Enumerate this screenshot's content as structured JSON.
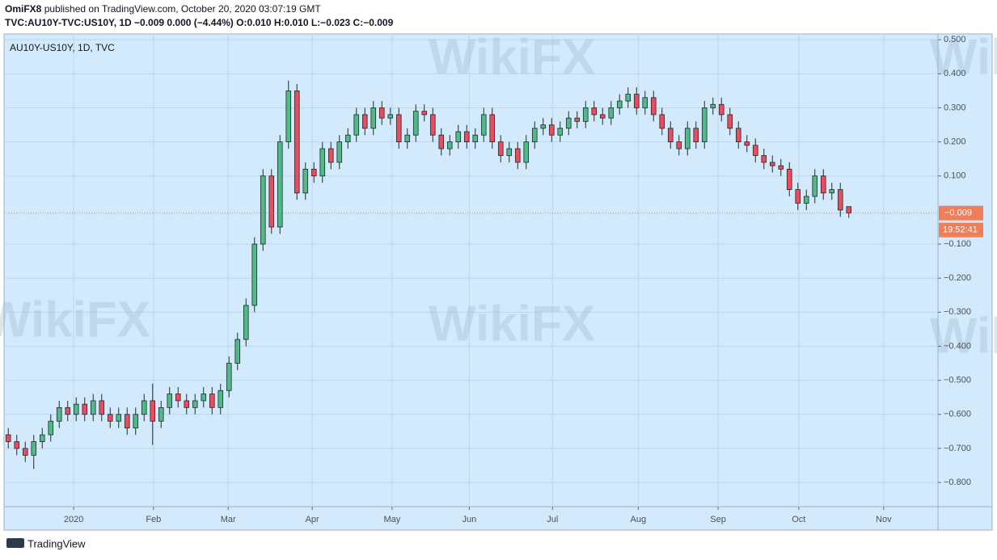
{
  "header": {
    "publisher": "OmiFX8",
    "published": "published on TradingView.com, October 20, 2020 03:07:19 GMT",
    "symbol_line": "TVC:AU10Y-TVC:US10Y, 1D  −0.009 0.000 (−4.44%) O:0.010 H:0.010 L:−0.023 C:−0.009"
  },
  "footer": {
    "brand": "TradingView"
  },
  "watermark": "WikiFX",
  "chart_data": {
    "type": "candlestick",
    "legend": "AU10Y-US10Y, 1D, TVC",
    "up_color": "#53b987",
    "down_color": "#eb4d5c",
    "grid": true,
    "price_badge": "−0.009",
    "countdown": "19:52:41",
    "xlim": [
      -0.5,
      109.5
    ],
    "xticks": [
      {
        "value": 7.7,
        "label": "2020"
      },
      {
        "value": 17.1,
        "label": "Feb"
      },
      {
        "value": 25.9,
        "label": "Mar"
      },
      {
        "value": 35.8,
        "label": "Apr"
      },
      {
        "value": 45.2,
        "label": "May"
      },
      {
        "value": 54.3,
        "label": "Jun"
      },
      {
        "value": 64.1,
        "label": "Jul"
      },
      {
        "value": 74.2,
        "label": "Aug"
      },
      {
        "value": 83.6,
        "label": "Sep"
      },
      {
        "value": 93.1,
        "label": "Oct"
      },
      {
        "value": 103.1,
        "label": "Nov"
      }
    ],
    "ylim": [
      -0.871,
      0.517
    ],
    "yticks": [
      {
        "value": 0.5,
        "label": "0.500"
      },
      {
        "value": 0.4,
        "label": "0.400"
      },
      {
        "value": 0.3,
        "label": "0.300"
      },
      {
        "value": 0.2,
        "label": "0.200"
      },
      {
        "value": 0.1,
        "label": "0.100"
      },
      {
        "value": -0.1,
        "label": "−0.100"
      },
      {
        "value": -0.2,
        "label": "−0.200"
      },
      {
        "value": -0.3,
        "label": "−0.300"
      },
      {
        "value": -0.4,
        "label": "−0.400"
      },
      {
        "value": -0.5,
        "label": "−0.500"
      },
      {
        "value": -0.6,
        "label": "−0.600"
      },
      {
        "value": -0.7,
        "label": "−0.700"
      },
      {
        "value": -0.8,
        "label": "−0.800"
      }
    ],
    "open": [
      -0.66,
      -0.68,
      -0.7,
      -0.72,
      -0.68,
      -0.66,
      -0.62,
      -0.58,
      -0.6,
      -0.57,
      -0.6,
      -0.56,
      -0.6,
      -0.62,
      -0.6,
      -0.64,
      -0.6,
      -0.56,
      -0.62,
      -0.58,
      -0.54,
      -0.56,
      -0.58,
      -0.56,
      -0.54,
      -0.58,
      -0.53,
      -0.45,
      -0.38,
      -0.28,
      -0.1,
      0.1,
      -0.05,
      0.2,
      0.35,
      0.05,
      0.12,
      0.1,
      0.18,
      0.14,
      0.2,
      0.22,
      0.28,
      0.24,
      0.3,
      0.27,
      0.28,
      0.2,
      0.22,
      0.29,
      0.28,
      0.22,
      0.18,
      0.2,
      0.23,
      0.2,
      0.22,
      0.28,
      0.2,
      0.16,
      0.18,
      0.14,
      0.2,
      0.24,
      0.25,
      0.22,
      0.24,
      0.27,
      0.26,
      0.3,
      0.28,
      0.27,
      0.3,
      0.32,
      0.34,
      0.3,
      0.33,
      0.28,
      0.24,
      0.2,
      0.18,
      0.24,
      0.2,
      0.3,
      0.31,
      0.28,
      0.24,
      0.2,
      0.19,
      0.16,
      0.14,
      0.13,
      0.12,
      0.06,
      0.02,
      0.04,
      0.1,
      0.05,
      0.06,
      0.01
    ],
    "high": [
      -0.64,
      -0.66,
      -0.68,
      -0.66,
      -0.64,
      -0.6,
      -0.56,
      -0.56,
      -0.55,
      -0.55,
      -0.54,
      -0.54,
      -0.58,
      -0.58,
      -0.58,
      -0.58,
      -0.54,
      -0.51,
      -0.56,
      -0.52,
      -0.52,
      -0.54,
      -0.54,
      -0.52,
      -0.52,
      -0.51,
      -0.43,
      -0.36,
      -0.26,
      -0.08,
      0.12,
      0.12,
      0.22,
      0.38,
      0.37,
      0.14,
      0.14,
      0.2,
      0.2,
      0.22,
      0.24,
      0.3,
      0.3,
      0.32,
      0.32,
      0.3,
      0.3,
      0.24,
      0.31,
      0.31,
      0.3,
      0.24,
      0.22,
      0.25,
      0.25,
      0.24,
      0.3,
      0.3,
      0.22,
      0.2,
      0.2,
      0.22,
      0.26,
      0.27,
      0.27,
      0.26,
      0.29,
      0.29,
      0.32,
      0.32,
      0.3,
      0.32,
      0.34,
      0.36,
      0.36,
      0.35,
      0.35,
      0.3,
      0.26,
      0.22,
      0.26,
      0.26,
      0.32,
      0.33,
      0.33,
      0.3,
      0.26,
      0.22,
      0.21,
      0.18,
      0.16,
      0.15,
      0.14,
      0.08,
      0.06,
      0.12,
      0.12,
      0.08,
      0.08,
      0.01
    ],
    "low": [
      -0.7,
      -0.72,
      -0.74,
      -0.76,
      -0.7,
      -0.68,
      -0.64,
      -0.62,
      -0.62,
      -0.62,
      -0.62,
      -0.62,
      -0.64,
      -0.64,
      -0.66,
      -0.66,
      -0.62,
      -0.69,
      -0.64,
      -0.6,
      -0.58,
      -0.6,
      -0.6,
      -0.58,
      -0.6,
      -0.6,
      -0.55,
      -0.47,
      -0.4,
      -0.3,
      -0.12,
      -0.07,
      -0.07,
      0.18,
      0.03,
      0.03,
      0.08,
      0.08,
      0.12,
      0.12,
      0.18,
      0.2,
      0.22,
      0.22,
      0.25,
      0.25,
      0.18,
      0.18,
      0.2,
      0.26,
      0.2,
      0.16,
      0.16,
      0.18,
      0.18,
      0.18,
      0.2,
      0.18,
      0.14,
      0.14,
      0.12,
      0.12,
      0.18,
      0.22,
      0.2,
      0.2,
      0.22,
      0.24,
      0.24,
      0.26,
      0.25,
      0.25,
      0.28,
      0.3,
      0.28,
      0.28,
      0.26,
      0.22,
      0.18,
      0.16,
      0.16,
      0.18,
      0.18,
      0.28,
      0.26,
      0.22,
      0.18,
      0.17,
      0.14,
      0.12,
      0.11,
      0.1,
      0.04,
      0.0,
      0.0,
      0.02,
      0.03,
      0.03,
      -0.02,
      -0.023
    ],
    "close": [
      -0.68,
      -0.7,
      -0.72,
      -0.68,
      -0.66,
      -0.62,
      -0.58,
      -0.6,
      -0.57,
      -0.6,
      -0.56,
      -0.6,
      -0.62,
      -0.6,
      -0.64,
      -0.6,
      -0.56,
      -0.62,
      -0.58,
      -0.54,
      -0.56,
      -0.58,
      -0.56,
      -0.54,
      -0.58,
      -0.53,
      -0.45,
      -0.38,
      -0.28,
      -0.1,
      0.1,
      -0.05,
      0.2,
      0.35,
      0.05,
      0.12,
      0.1,
      0.18,
      0.14,
      0.2,
      0.22,
      0.28,
      0.24,
      0.3,
      0.27,
      0.28,
      0.2,
      0.22,
      0.29,
      0.28,
      0.22,
      0.18,
      0.2,
      0.23,
      0.2,
      0.22,
      0.28,
      0.2,
      0.16,
      0.18,
      0.14,
      0.2,
      0.24,
      0.25,
      0.22,
      0.24,
      0.27,
      0.26,
      0.3,
      0.28,
      0.27,
      0.3,
      0.32,
      0.34,
      0.3,
      0.33,
      0.28,
      0.24,
      0.2,
      0.18,
      0.24,
      0.2,
      0.3,
      0.31,
      0.28,
      0.24,
      0.2,
      0.19,
      0.16,
      0.14,
      0.13,
      0.12,
      0.06,
      0.02,
      0.04,
      0.1,
      0.05,
      0.06,
      0.0,
      -0.009
    ]
  }
}
